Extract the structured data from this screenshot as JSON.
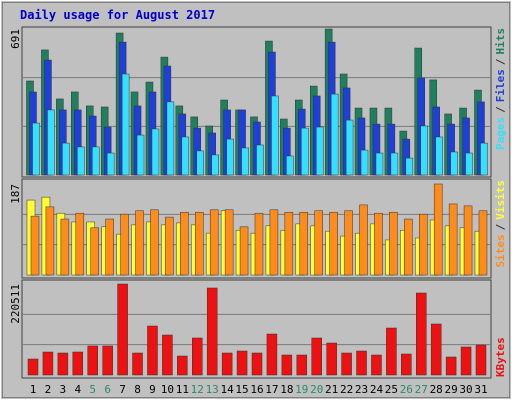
{
  "chart_data": [
    {
      "type": "bar",
      "title": "Daily usage for August 2017",
      "legend_separator": "/",
      "ylim": [
        0,
        691
      ],
      "yticks": [
        691
      ],
      "series": [
        {
          "name": "Hits",
          "color": "#1f7f5f",
          "values": [
            445,
            592,
            360,
            393,
            327,
            322,
            672,
            393,
            440,
            558,
            327,
            275,
            232,
            355,
            308,
            275,
            634,
            265,
            355,
            421,
            691,
            478,
            317,
            317,
            317,
            208,
            601,
            450,
            289,
            317,
            402
          ]
        },
        {
          "name": "Files",
          "color": "#1f3fd9",
          "values": [
            393,
            544,
            308,
            308,
            279,
            227,
            629,
            327,
            393,
            516,
            289,
            222,
            199,
            308,
            308,
            251,
            582,
            222,
            312,
            374,
            629,
            412,
            270,
            241,
            241,
            170,
            459,
            322,
            241,
            270,
            346
          ]
        },
        {
          "name": "Pages",
          "color": "#33e0ff",
          "values": [
            246,
            308,
            151,
            133,
            133,
            104,
            478,
            189,
            218,
            346,
            180,
            114,
            95,
            170,
            128,
            142,
            374,
            90,
            222,
            227,
            383,
            260,
            118,
            104,
            104,
            80,
            232,
            180,
            109,
            104,
            151
          ]
        }
      ]
    },
    {
      "type": "bar",
      "legend_separator": "/",
      "ylim": [
        0,
        187
      ],
      "yticks": [
        187
      ],
      "series": [
        {
          "name": "Visits",
          "color": "#ffff33",
          "values": [
            154,
            160,
            127,
            109,
            109,
            99,
            84,
            103,
            109,
            103,
            107,
            103,
            86,
            132,
            92,
            86,
            101,
            92,
            105,
            101,
            90,
            80,
            86,
            105,
            72,
            92,
            76,
            113,
            101,
            97,
            90
          ]
        },
        {
          "name": "Sites",
          "color": "#ff8c1a",
          "values": [
            121,
            140,
            115,
            127,
            97,
            115,
            125,
            132,
            134,
            119,
            129,
            129,
            134,
            134,
            99,
            127,
            134,
            129,
            129,
            132,
            129,
            132,
            144,
            127,
            129,
            115,
            125,
            187,
            146,
            142,
            132
          ]
        }
      ]
    },
    {
      "type": "bar",
      "ylim": [
        0,
        220511
      ],
      "yticks": [
        220511
      ],
      "categories": [
        "1",
        "2",
        "3",
        "4",
        "5",
        "6",
        "7",
        "8",
        "9",
        "10",
        "11",
        "12",
        "13",
        "14",
        "15",
        "16",
        "17",
        "18",
        "19",
        "20",
        "21",
        "22",
        "23",
        "24",
        "25",
        "26",
        "27",
        "28",
        "29",
        "30",
        "31"
      ],
      "category_colors": [
        "#000000",
        "#000000",
        "#000000",
        "#000000",
        "#2a8a6a",
        "#2a8a6a",
        "#000000",
        "#000000",
        "#000000",
        "#000000",
        "#000000",
        "#2a8a6a",
        "#2a8a6a",
        "#000000",
        "#000000",
        "#000000",
        "#000000",
        "#000000",
        "#2a8a6a",
        "#2a8a6a",
        "#000000",
        "#000000",
        "#000000",
        "#000000",
        "#000000",
        "#2a8a6a",
        "#2a8a6a",
        "#000000",
        "#000000",
        "#000000",
        "#000000"
      ],
      "series": [
        {
          "name": "KBytes",
          "color": "#ee1111",
          "values": [
            38771,
            55733,
            53310,
            55733,
            70273,
            70273,
            220511,
            53310,
            118737,
            96928,
            46040,
            89658,
            210818,
            53310,
            58156,
            53310,
            99351,
            48464,
            48464,
            89658,
            77542,
            53310,
            58156,
            48464,
            113891,
            50887,
            198702,
            123583,
            43618,
            67849,
            72696
          ]
        }
      ]
    }
  ]
}
